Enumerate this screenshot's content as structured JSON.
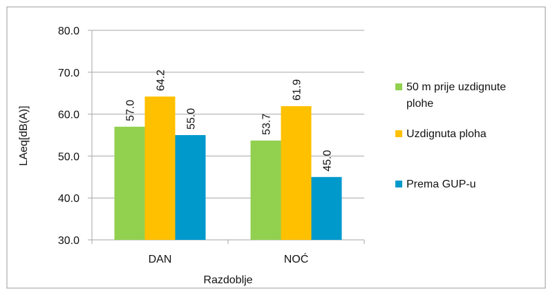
{
  "chart_data": {
    "type": "bar",
    "categories": [
      "DAN",
      "NOĆ"
    ],
    "series": [
      {
        "name": "50 m prije uzdignute plohe",
        "values": [
          57.0,
          53.7
        ],
        "color": "#92d050"
      },
      {
        "name": "Uzdignuta ploha",
        "values": [
          64.2,
          61.9
        ],
        "color": "#ffc000"
      },
      {
        "name": "Prema GUP-u",
        "values": [
          55.0,
          45.0
        ],
        "color": "#0099cc"
      }
    ],
    "data_labels": [
      [
        "57.0",
        "53.7"
      ],
      [
        "64.2",
        "61.9"
      ],
      [
        "55.0",
        "45.0"
      ]
    ],
    "xlabel": "Razdoblje",
    "ylabel": "LAeq[dB(A)]",
    "ylim": [
      30,
      80
    ],
    "yticks": [
      "30.0",
      "40.0",
      "50.0",
      "60.0",
      "70.0",
      "80.0"
    ],
    "grid": true,
    "legend_position": "right",
    "legend": {
      "item1_line1": "50 m prije uzdignute",
      "item1_line2": "plohe",
      "item2": "Uzdignuta ploha",
      "item3": "Prema GUP-u"
    }
  }
}
